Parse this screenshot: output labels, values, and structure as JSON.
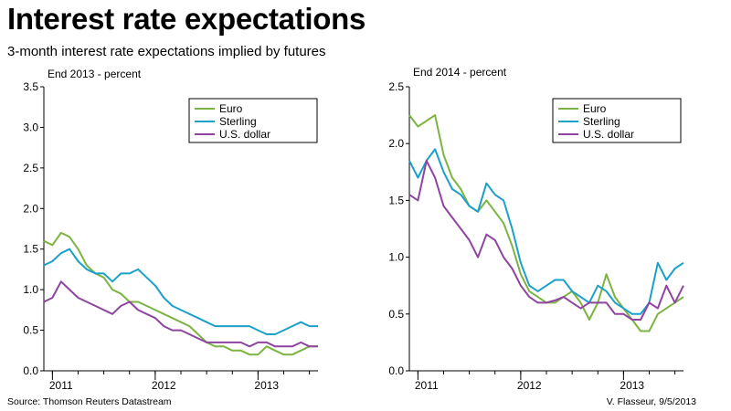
{
  "header": {
    "title": "Interest rate expectations",
    "subtitle": "3-month interest rate expectations implied by futures"
  },
  "footer": {
    "source": "Source: Thomson Reuters Datastream",
    "credit": "V. Flasseur, 9/5/2013"
  },
  "colors": {
    "Euro": "#7cb342",
    "Sterling": "#1ba1c9",
    "U.S. dollar": "#8e44a0"
  },
  "chart_data": [
    {
      "type": "line",
      "title": "End 2013 - percent",
      "ylim": [
        0,
        3.5
      ],
      "yticks": [
        "0.0",
        "0.5",
        "1.0",
        "1.5",
        "2.0",
        "2.5",
        "3.0",
        "3.5"
      ],
      "xlim": [
        "2010-12",
        "2013-08"
      ],
      "xticks": [
        "2011",
        "2012",
        "2013"
      ],
      "legend": "top-right",
      "x": [
        "2010-12",
        "2011-01",
        "2011-02",
        "2011-03",
        "2011-04",
        "2011-05",
        "2011-06",
        "2011-07",
        "2011-08",
        "2011-09",
        "2011-10",
        "2011-11",
        "2011-12",
        "2012-01",
        "2012-02",
        "2012-03",
        "2012-04",
        "2012-05",
        "2012-06",
        "2012-07",
        "2012-08",
        "2012-09",
        "2012-10",
        "2012-11",
        "2012-12",
        "2013-01",
        "2013-02",
        "2013-03",
        "2013-04",
        "2013-05",
        "2013-06",
        "2013-07",
        "2013-08"
      ],
      "series": [
        {
          "name": "Euro",
          "values": [
            1.6,
            1.55,
            1.7,
            1.65,
            1.5,
            1.3,
            1.2,
            1.15,
            1.0,
            0.95,
            0.85,
            0.85,
            0.8,
            0.75,
            0.7,
            0.65,
            0.6,
            0.55,
            0.45,
            0.35,
            0.3,
            0.3,
            0.25,
            0.25,
            0.2,
            0.2,
            0.3,
            0.25,
            0.2,
            0.2,
            0.25,
            0.3,
            0.3
          ]
        },
        {
          "name": "Sterling",
          "values": [
            1.3,
            1.35,
            1.45,
            1.5,
            1.35,
            1.25,
            1.2,
            1.2,
            1.1,
            1.2,
            1.2,
            1.25,
            1.15,
            1.05,
            0.9,
            0.8,
            0.75,
            0.7,
            0.65,
            0.6,
            0.55,
            0.55,
            0.55,
            0.55,
            0.55,
            0.5,
            0.45,
            0.45,
            0.5,
            0.55,
            0.6,
            0.55,
            0.55
          ]
        },
        {
          "name": "U.S. dollar",
          "values": [
            0.85,
            0.9,
            1.1,
            1.0,
            0.9,
            0.85,
            0.8,
            0.75,
            0.7,
            0.8,
            0.85,
            0.75,
            0.7,
            0.65,
            0.55,
            0.5,
            0.5,
            0.45,
            0.4,
            0.35,
            0.35,
            0.35,
            0.35,
            0.35,
            0.3,
            0.35,
            0.35,
            0.3,
            0.3,
            0.3,
            0.35,
            0.3,
            0.3
          ]
        }
      ]
    },
    {
      "type": "line",
      "title": "End 2014 - percent",
      "ylim": [
        0,
        2.5
      ],
      "yticks": [
        "0.0",
        "0.5",
        "1.0",
        "1.5",
        "2.0",
        "2.5"
      ],
      "xlim": [
        "2010-12",
        "2013-08"
      ],
      "xticks": [
        "2011",
        "2012",
        "2013"
      ],
      "legend": "top-right",
      "x": [
        "2010-12",
        "2011-01",
        "2011-02",
        "2011-03",
        "2011-04",
        "2011-05",
        "2011-06",
        "2011-07",
        "2011-08",
        "2011-09",
        "2011-10",
        "2011-11",
        "2011-12",
        "2012-01",
        "2012-02",
        "2012-03",
        "2012-04",
        "2012-05",
        "2012-06",
        "2012-07",
        "2012-08",
        "2012-09",
        "2012-10",
        "2012-11",
        "2012-12",
        "2013-01",
        "2013-02",
        "2013-03",
        "2013-04",
        "2013-05",
        "2013-06",
        "2013-07",
        "2013-08"
      ],
      "series": [
        {
          "name": "Euro",
          "values": [
            2.25,
            2.15,
            2.2,
            2.25,
            1.9,
            1.7,
            1.6,
            1.45,
            1.4,
            1.5,
            1.4,
            1.3,
            1.1,
            0.85,
            0.7,
            0.65,
            0.6,
            0.6,
            0.65,
            0.7,
            0.6,
            0.45,
            0.6,
            0.85,
            0.65,
            0.55,
            0.45,
            0.35,
            0.35,
            0.5,
            0.55,
            0.6,
            0.65
          ]
        },
        {
          "name": "Sterling",
          "values": [
            1.85,
            1.7,
            1.85,
            1.95,
            1.75,
            1.6,
            1.55,
            1.45,
            1.4,
            1.65,
            1.55,
            1.5,
            1.25,
            0.95,
            0.75,
            0.7,
            0.75,
            0.8,
            0.8,
            0.7,
            0.65,
            0.6,
            0.75,
            0.7,
            0.6,
            0.55,
            0.5,
            0.5,
            0.6,
            0.95,
            0.8,
            0.9,
            0.95
          ]
        },
        {
          "name": "U.S. dollar",
          "values": [
            1.55,
            1.5,
            1.85,
            1.7,
            1.45,
            1.35,
            1.25,
            1.15,
            1.0,
            1.2,
            1.15,
            1.0,
            0.9,
            0.75,
            0.65,
            0.6,
            0.6,
            0.62,
            0.65,
            0.6,
            0.55,
            0.6,
            0.6,
            0.6,
            0.5,
            0.5,
            0.45,
            0.45,
            0.6,
            0.55,
            0.75,
            0.6,
            0.75
          ]
        }
      ]
    }
  ]
}
